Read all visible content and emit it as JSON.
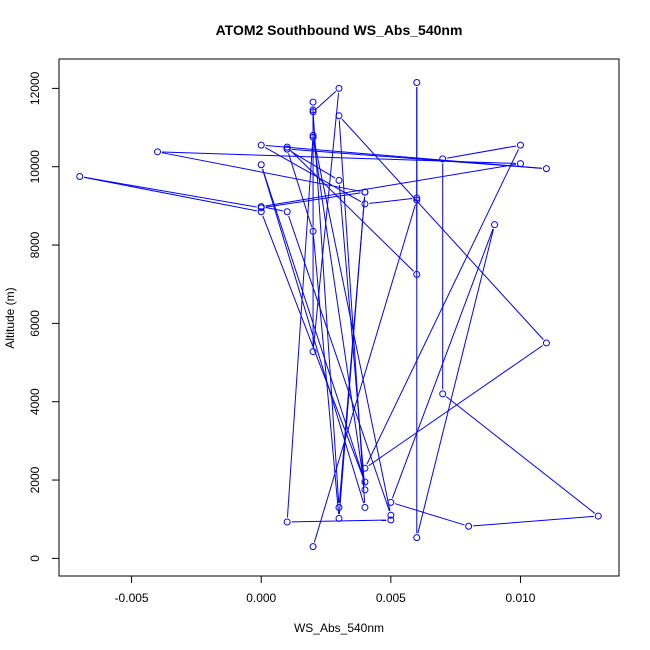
{
  "chart_data": {
    "type": "line",
    "title": "ATOM2 Southbound WS_Abs_540nm",
    "xlabel": "WS_Abs_540nm",
    "ylabel": "Altitude (m)",
    "xlim": [
      -0.0078,
      0.0138
    ],
    "ylim": [
      -450,
      12750
    ],
    "x_ticks": [
      -0.005,
      0.0,
      0.005,
      0.01
    ],
    "x_tick_labels": [
      "-0.005",
      "0.000",
      "0.005",
      "0.010"
    ],
    "y_ticks": [
      0,
      2000,
      4000,
      6000,
      8000,
      10000,
      12000
    ],
    "y_tick_labels": [
      "0",
      "2000",
      "4000",
      "6000",
      "8000",
      "10000",
      "12000"
    ],
    "grid": false,
    "legend": "none",
    "marker": "open-circle",
    "series": [
      {
        "color": "#0000ff",
        "points": [
          {
            "x": 0.002,
            "y": 300
          },
          {
            "x": 0.006,
            "y": 9150
          },
          {
            "x": 0.006,
            "y": 12150
          },
          {
            "x": 0.006,
            "y": 7250
          },
          {
            "x": 0.001,
            "y": 10500
          },
          {
            "x": 0.001,
            "y": 10450
          },
          {
            "x": 0.003,
            "y": 9650
          },
          {
            "x": 0.004,
            "y": 1750
          },
          {
            "x": 0.002,
            "y": 10750
          },
          {
            "x": 0.002,
            "y": 11450
          },
          {
            "x": 0.002,
            "y": 11650
          },
          {
            "x": 0.002,
            "y": 5280
          },
          {
            "x": 0.003,
            "y": 12000
          },
          {
            "x": 0.002,
            "y": 11400
          },
          {
            "x": 0.003,
            "y": 1300
          },
          {
            "x": 0.004,
            "y": 9350
          },
          {
            "x": 0.0,
            "y": 8950
          },
          {
            "x": -0.007,
            "y": 9750
          },
          {
            "x": 0.0,
            "y": 8850
          },
          {
            "x": 0.004,
            "y": 1950
          },
          {
            "x": 0.0,
            "y": 10050
          },
          {
            "x": 0.004,
            "y": 1300
          },
          {
            "x": 0.003,
            "y": 11300
          },
          {
            "x": 0.011,
            "y": 5500
          },
          {
            "x": 0.004,
            "y": 2300
          },
          {
            "x": 0.01,
            "y": 10550
          },
          {
            "x": 0.007,
            "y": 10200
          },
          {
            "x": 0.007,
            "y": 4200
          },
          {
            "x": 0.013,
            "y": 1080
          },
          {
            "x": 0.008,
            "y": 820
          },
          {
            "x": 0.005,
            "y": 1430
          },
          {
            "x": 0.009,
            "y": 8520
          },
          {
            "x": 0.006,
            "y": 530
          },
          {
            "x": 0.006,
            "y": 9200
          },
          {
            "x": 0.004,
            "y": 9050
          },
          {
            "x": 0.0,
            "y": 10550
          },
          {
            "x": 0.011,
            "y": 9950
          },
          {
            "x": 0.001,
            "y": 10450
          },
          {
            "x": 0.002,
            "y": 8350
          },
          {
            "x": 0.003,
            "y": 1020
          },
          {
            "x": 0.004,
            "y": 9350
          },
          {
            "x": -0.004,
            "y": 10380
          },
          {
            "x": 0.01,
            "y": 10080
          },
          {
            "x": 0.0,
            "y": 8980
          },
          {
            "x": 0.001,
            "y": 8850
          },
          {
            "x": 0.005,
            "y": 1100
          },
          {
            "x": 0.002,
            "y": 10800
          },
          {
            "x": 0.001,
            "y": 930
          },
          {
            "x": 0.005,
            "y": 980
          }
        ]
      }
    ]
  }
}
